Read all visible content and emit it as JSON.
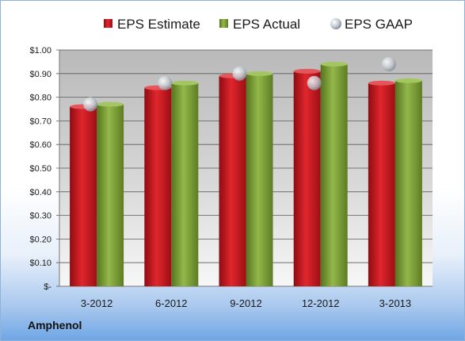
{
  "chart_data": {
    "type": "bar",
    "categories": [
      "3-2012",
      "6-2012",
      "9-2012",
      "12-2012",
      "3-2013"
    ],
    "series": [
      {
        "name": "EPS Estimate",
        "values": [
          0.76,
          0.84,
          0.89,
          0.91,
          0.86
        ],
        "color": "#c8161d"
      },
      {
        "name": "EPS Actual",
        "values": [
          0.77,
          0.86,
          0.9,
          0.94,
          0.87
        ],
        "color": "#7da03a"
      },
      {
        "name": "EPS GAAP",
        "values": [
          0.77,
          0.86,
          0.9,
          0.86,
          0.94
        ],
        "color": "#b8c0c8",
        "mark": "scatter"
      }
    ],
    "ylim": [
      0,
      1.0
    ],
    "yticks": [
      "$-",
      "$0.10",
      "$0.20",
      "$0.30",
      "$0.40",
      "$0.50",
      "$0.60",
      "$0.70",
      "$0.80",
      "$0.90",
      "$1.00"
    ],
    "legend_position": "top",
    "grid": true
  },
  "company": "Amphenol"
}
